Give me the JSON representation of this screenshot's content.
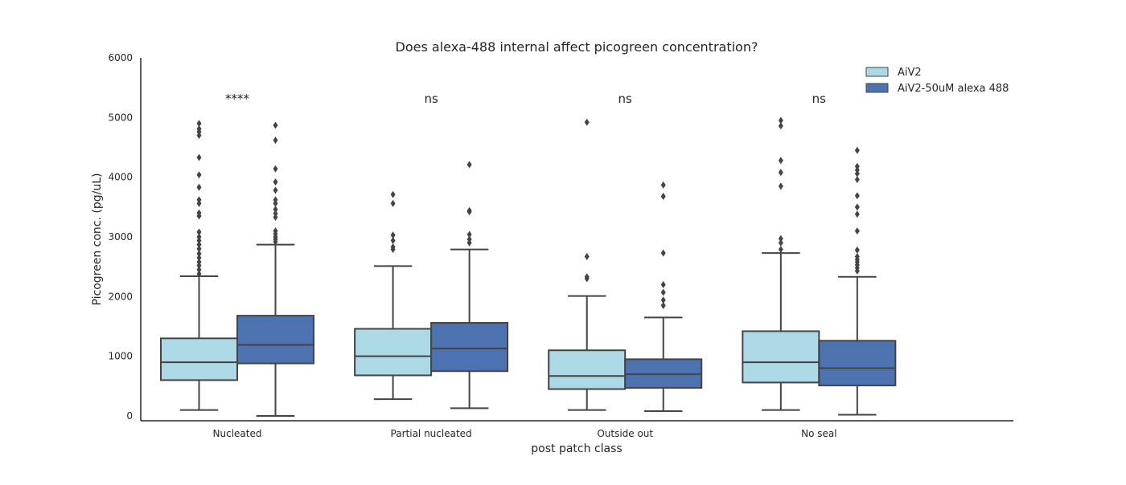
{
  "chart_data": {
    "type": "box",
    "title": "Does alexa-488 internal affect picogreen concentration?",
    "xlabel": "post patch class",
    "ylabel": "Picogreen conc. (pg/uL)",
    "ylim": [
      -100,
      6000
    ],
    "yticks": [
      0,
      1000,
      2000,
      3000,
      4000,
      5000,
      6000
    ],
    "grid": false,
    "legend_position": "top-right",
    "categories": [
      "Nucleated",
      "Partial nucleated",
      "Outside out",
      "No seal"
    ],
    "annotations": [
      "****",
      "ns",
      "ns",
      "ns"
    ],
    "series": [
      {
        "name": "AiV2",
        "color": "#add8e6",
        "boxes": [
          {
            "whislo": 100,
            "q1": 600,
            "med": 900,
            "q3": 1300,
            "whishi": 2340,
            "fliers": [
              2380,
              2450,
              2520,
              2580,
              2650,
              2720,
              2800,
              2870,
              2940,
              3000,
              3080,
              3350,
              3400,
              3560,
              3620,
              3830,
              4040,
              4330,
              4700,
              4760,
              4810,
              4900
            ]
          },
          {
            "whislo": 280,
            "q1": 680,
            "med": 1000,
            "q3": 1460,
            "whishi": 2510,
            "fliers": [
              2790,
              2830,
              2940,
              3030,
              3560,
              3710
            ]
          },
          {
            "whislo": 100,
            "q1": 450,
            "med": 670,
            "q3": 1100,
            "whishi": 2010,
            "fliers": [
              2300,
              2330,
              2670,
              4920
            ]
          },
          {
            "whislo": 100,
            "q1": 560,
            "med": 900,
            "q3": 1420,
            "whishi": 2730,
            "fliers": [
              2790,
              2900,
              2970,
              3850,
              4080,
              4280,
              4860,
              4950
            ]
          }
        ]
      },
      {
        "name": "AiV2-50uM alexa 488",
        "color": "#4c72b0",
        "boxes": [
          {
            "whislo": 0,
            "q1": 880,
            "med": 1190,
            "q3": 1680,
            "whishi": 2870,
            "fliers": [
              2920,
              2960,
              3000,
              3050,
              3100,
              3330,
              3390,
              3460,
              3560,
              3620,
              3780,
              3920,
              4140,
              4620,
              4870
            ]
          },
          {
            "whislo": 130,
            "q1": 750,
            "med": 1130,
            "q3": 1560,
            "whishi": 2790,
            "fliers": [
              2900,
              2960,
              3040,
              3420,
              3440,
              4210
            ]
          },
          {
            "whislo": 80,
            "q1": 470,
            "med": 700,
            "q3": 950,
            "whishi": 1650,
            "fliers": [
              1850,
              1940,
              2070,
              2200,
              2730,
              3680,
              3870
            ]
          },
          {
            "whislo": 20,
            "q1": 510,
            "med": 800,
            "q3": 1260,
            "whishi": 2330,
            "fliers": [
              2430,
              2480,
              2530,
              2580,
              2620,
              2670,
              2780,
              3100,
              3380,
              3500,
              3690,
              3960,
              4060,
              4120,
              4180,
              4450
            ]
          }
        ]
      }
    ]
  }
}
